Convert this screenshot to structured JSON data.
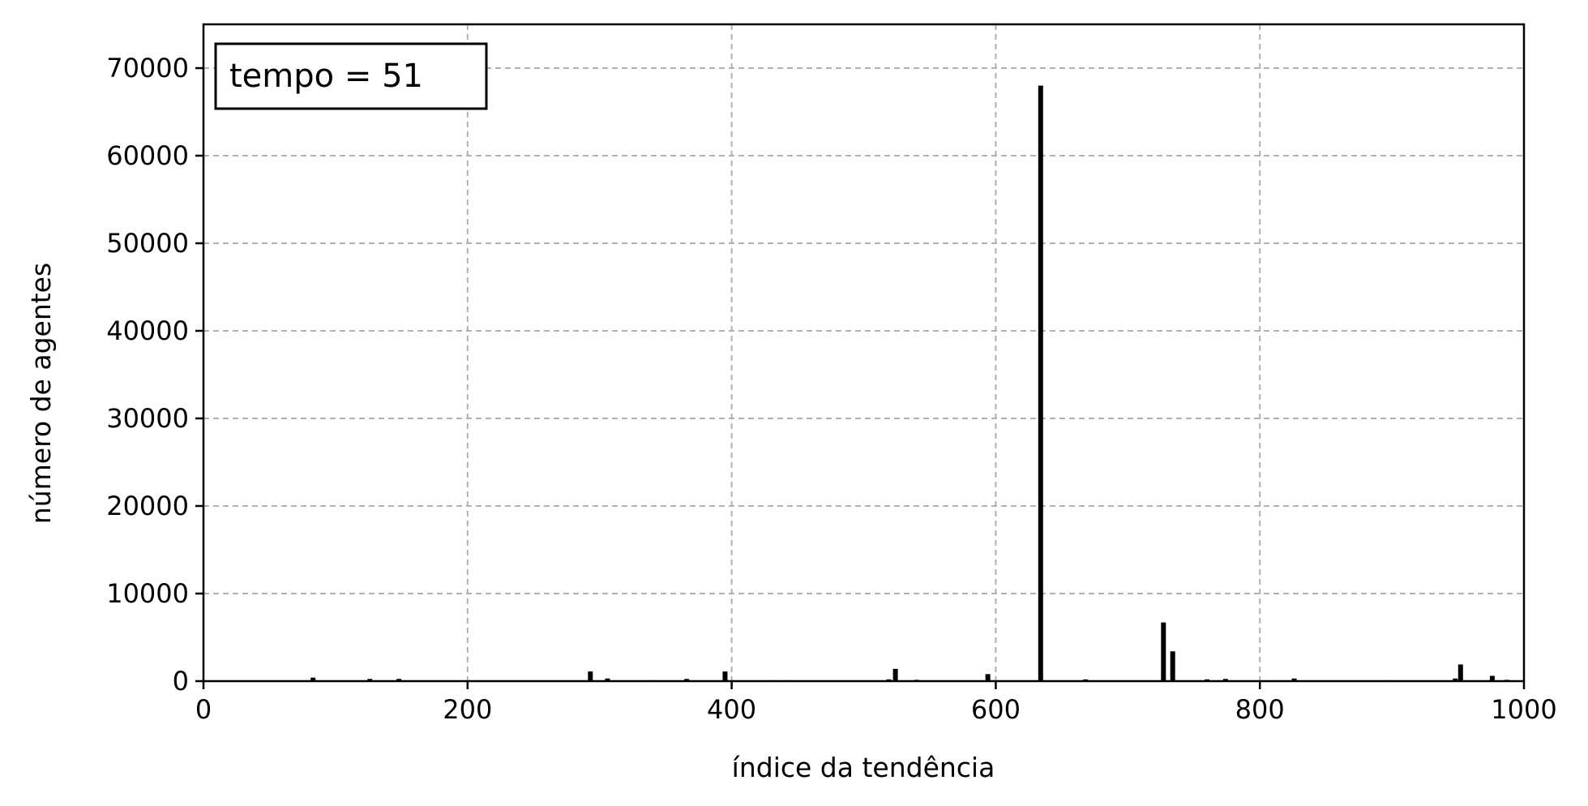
{
  "chart_data": {
    "type": "bar",
    "title": "",
    "xlabel": "índice da tendência",
    "ylabel": "número de agentes",
    "xlim": [
      0,
      1000
    ],
    "ylim": [
      0,
      75000
    ],
    "xticks": [
      0,
      200,
      400,
      600,
      800,
      1000
    ],
    "yticks": [
      0,
      10000,
      20000,
      30000,
      40000,
      50000,
      60000,
      70000
    ],
    "grid": true,
    "bar_color": "#000000",
    "annotation": "tempo = 51",
    "annotation_position": "top-left",
    "bars": [
      {
        "x": 83,
        "value": 400
      },
      {
        "x": 126,
        "value": 250
      },
      {
        "x": 148,
        "value": 250
      },
      {
        "x": 293,
        "value": 1100
      },
      {
        "x": 306,
        "value": 300
      },
      {
        "x": 340,
        "value": 100
      },
      {
        "x": 366,
        "value": 250
      },
      {
        "x": 395,
        "value": 1100
      },
      {
        "x": 433,
        "value": 100
      },
      {
        "x": 443,
        "value": 100
      },
      {
        "x": 519,
        "value": 200
      },
      {
        "x": 524,
        "value": 1400
      },
      {
        "x": 540,
        "value": 150
      },
      {
        "x": 594,
        "value": 800
      },
      {
        "x": 634,
        "value": 68000
      },
      {
        "x": 668,
        "value": 200
      },
      {
        "x": 727,
        "value": 6700
      },
      {
        "x": 734,
        "value": 3400
      },
      {
        "x": 760,
        "value": 200
      },
      {
        "x": 774,
        "value": 250
      },
      {
        "x": 826,
        "value": 300
      },
      {
        "x": 896,
        "value": 100
      },
      {
        "x": 948,
        "value": 300
      },
      {
        "x": 952,
        "value": 1900
      },
      {
        "x": 976,
        "value": 600
      },
      {
        "x": 987,
        "value": 150
      }
    ]
  }
}
